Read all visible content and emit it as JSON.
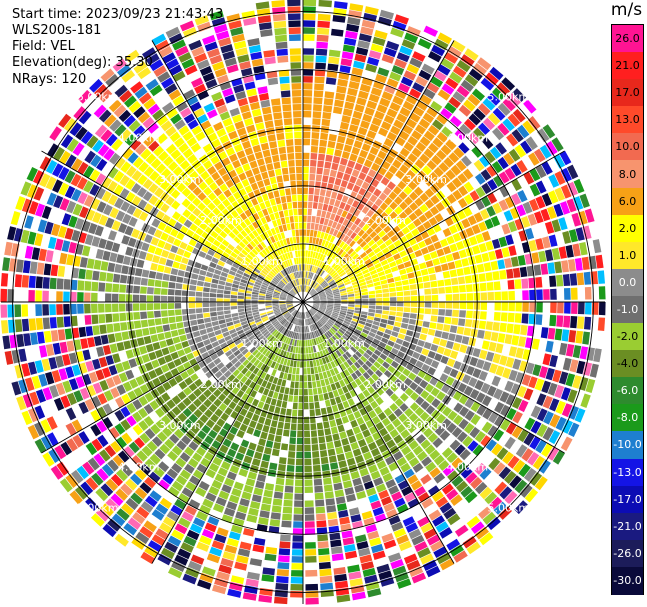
{
  "header": {
    "start_time": "Start time: 2023/09/23 21:43:43",
    "instrument": "WLS200s-181",
    "field": "Field: VEL",
    "elevation": "Elevation(deg): 35.30",
    "nrays": "NRays: 120"
  },
  "colorbar": {
    "unit": "m/s",
    "ticks": [
      "26.0",
      "21.0",
      "17.0",
      "13.0",
      "10.0",
      "8.0",
      "6.0",
      "2.0",
      "1.0",
      "0.0",
      "-1.0",
      "-2.0",
      "-4.0",
      "-6.0",
      "-8.0",
      "-10.0",
      "-13.0",
      "-17.0",
      "-21.0",
      "-26.0",
      "-30.0"
    ],
    "colors": [
      "#ff1493",
      "#ff1f1f",
      "#e8281c",
      "#ff4a2a",
      "#f26a50",
      "#f7946e",
      "#f7a116",
      "#ffff00",
      "#ffe82a",
      "#8c8c8c",
      "#6f6f6f",
      "#9acd32",
      "#6b8e23",
      "#2e8b2e",
      "#1b9a1b",
      "#1e7fd0",
      "#1414e6",
      "#0c0cb4",
      "#1a1a80",
      "#1c1c5a",
      "#0a0a3a"
    ]
  },
  "chart_data": {
    "type": "heatmap",
    "kind": "radar PPI (plan position indicator)",
    "field": "VEL",
    "units": "m/s",
    "nrays": 120,
    "elevation_deg": 35.3,
    "range_rings_km": [
      1.0,
      2.0,
      3.0,
      4.0,
      5.0
    ],
    "ring_labels": [
      "1.00km",
      "2.00km",
      "3.00km",
      "4.00km",
      "5.00km"
    ],
    "max_range_km": 5.2,
    "value_range": [
      -30.0,
      26.0
    ],
    "pattern_summary": "positive velocities (yellow/orange, 2-8 m/s) to the north, negative velocities (green, -2 to -6 m/s) to the south, near-zero (grey) around the center and along the west, noisy mixed values beyond ~3.8 km"
  }
}
